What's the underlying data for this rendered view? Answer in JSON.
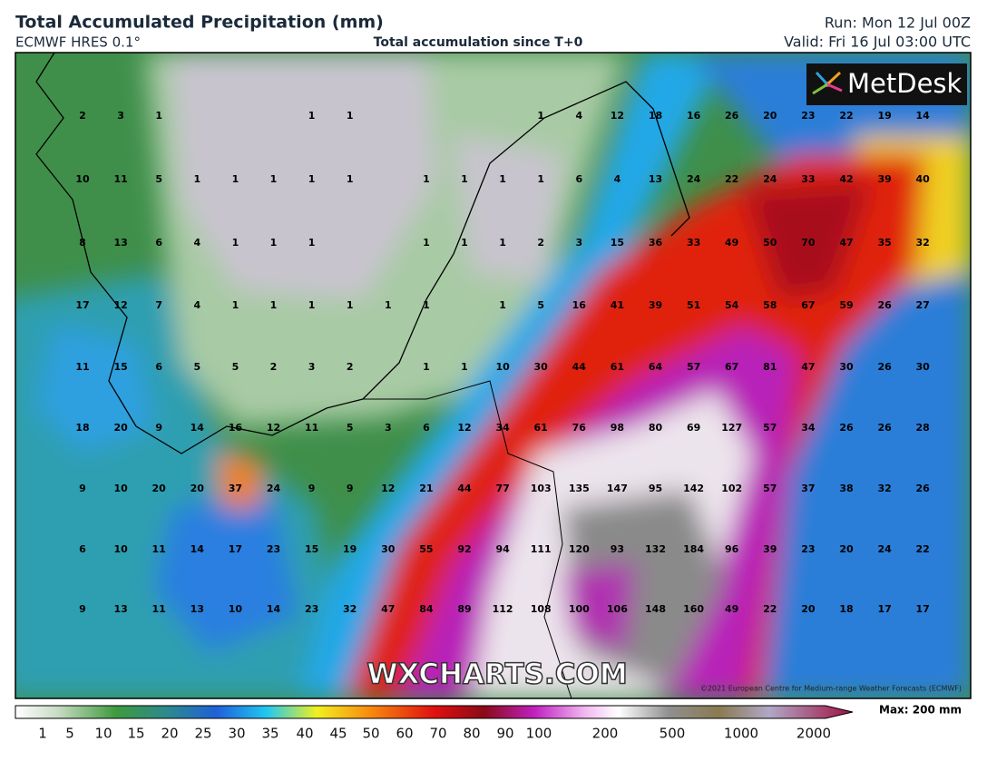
{
  "header": {
    "title": "Total Accumulated Precipitation (mm)",
    "model": "ECMWF HRES 0.1°",
    "subtitle": "Total accumulation since T+0",
    "run": "Run: Mon 12 Jul 00Z",
    "valid": "Valid: Fri 16 Jul 03:00 UTC"
  },
  "map": {
    "logo": "MetDesk",
    "watermark": "WXCHARTS.COM",
    "copyright": "©2021 European Centre for Medium-range Weather Forecasts (ECMWF)",
    "grid": [
      [
        2,
        3,
        1,
        null,
        null,
        null,
        1,
        1,
        null,
        null,
        null,
        null,
        1,
        4,
        12,
        18,
        16,
        26,
        20,
        23,
        22,
        19,
        14
      ],
      [
        10,
        11,
        5,
        1,
        1,
        1,
        1,
        1,
        null,
        1,
        1,
        1,
        1,
        6,
        4,
        13,
        24,
        22,
        24,
        33,
        42,
        39,
        40
      ],
      [
        8,
        13,
        6,
        4,
        1,
        1,
        1,
        null,
        null,
        1,
        1,
        1,
        2,
        3,
        15,
        36,
        33,
        49,
        50,
        70,
        47,
        35,
        32
      ],
      [
        17,
        12,
        7,
        4,
        1,
        1,
        1,
        1,
        1,
        1,
        null,
        1,
        5,
        16,
        41,
        39,
        51,
        54,
        58,
        67,
        59,
        26,
        27
      ],
      [
        11,
        15,
        6,
        5,
        5,
        2,
        3,
        2,
        null,
        1,
        1,
        10,
        30,
        44,
        61,
        64,
        57,
        67,
        81,
        47,
        30,
        26,
        30
      ],
      [
        18,
        20,
        9,
        14,
        16,
        12,
        11,
        5,
        3,
        6,
        12,
        34,
        61,
        76,
        98,
        80,
        69,
        127,
        57,
        34,
        26,
        26,
        28
      ],
      [
        9,
        10,
        20,
        20,
        37,
        24,
        9,
        9,
        12,
        21,
        44,
        77,
        103,
        135,
        147,
        95,
        142,
        102,
        57,
        37,
        38,
        32,
        26
      ],
      [
        6,
        10,
        11,
        14,
        17,
        23,
        15,
        19,
        30,
        55,
        92,
        94,
        111,
        120,
        93,
        132,
        184,
        96,
        39,
        23,
        20,
        24,
        22
      ],
      [
        9,
        13,
        11,
        13,
        10,
        14,
        23,
        32,
        47,
        84,
        89,
        112,
        108,
        100,
        106,
        148,
        160,
        49,
        22,
        20,
        18,
        17,
        17
      ]
    ]
  },
  "colorbar": {
    "labels": [
      1,
      5,
      10,
      15,
      20,
      25,
      30,
      35,
      40,
      45,
      50,
      60,
      70,
      80,
      90,
      100,
      200,
      500,
      1000,
      2000
    ],
    "max_label": "Max: 200 mm"
  }
}
